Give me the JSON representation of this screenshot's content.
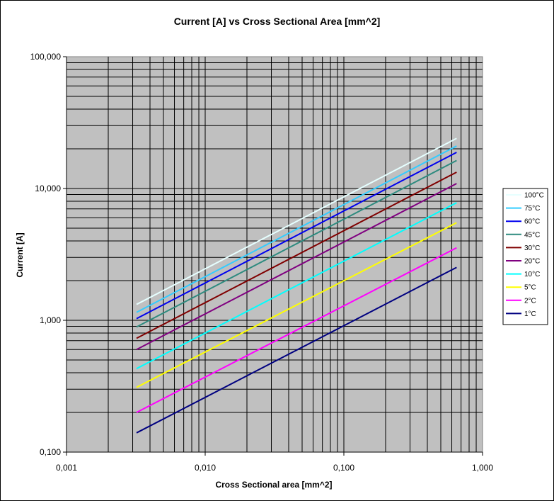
{
  "chart_data": {
    "type": "line",
    "title": "Current [A] vs Cross Sectional Area [mm^2]",
    "xlabel": "Cross Sectional area [mm^2]",
    "ylabel": "Current [A]",
    "x_scale": "log",
    "y_scale": "log",
    "xlim": [
      0.001,
      1
    ],
    "ylim": [
      0.1,
      100
    ],
    "x_ticks": [
      "0,001",
      "0,010",
      "0,100",
      "1,000"
    ],
    "y_ticks": [
      "0,100",
      "1,000",
      "10,000",
      "100,000"
    ],
    "grid": true,
    "legend_position": "right",
    "plot_background": "#c0c0c0",
    "x_range": [
      0.0032,
      0.65
    ],
    "series": [
      {
        "name": "100°C",
        "color": "#e6ffff",
        "values": [
          1.32,
          24.0
        ]
      },
      {
        "name": "75°C",
        "color": "#33ccff",
        "values": [
          1.15,
          21.0
        ]
      },
      {
        "name": "60°C",
        "color": "#0000ee",
        "values": [
          1.03,
          18.8
        ]
      },
      {
        "name": "45°C",
        "color": "#2e8b7f",
        "values": [
          0.89,
          16.3
        ]
      },
      {
        "name": "30°C",
        "color": "#800000",
        "values": [
          0.73,
          13.3
        ]
      },
      {
        "name": "20°C",
        "color": "#800080",
        "values": [
          0.6,
          10.9
        ]
      },
      {
        "name": "10°C",
        "color": "#00ffff",
        "values": [
          0.43,
          7.8
        ]
      },
      {
        "name": "5°C",
        "color": "#ffff00",
        "values": [
          0.31,
          5.5
        ]
      },
      {
        "name": "2°C",
        "color": "#ff00ff",
        "values": [
          0.2,
          3.55
        ]
      },
      {
        "name": "1°C",
        "color": "#000080",
        "values": [
          0.14,
          2.52
        ]
      }
    ]
  }
}
